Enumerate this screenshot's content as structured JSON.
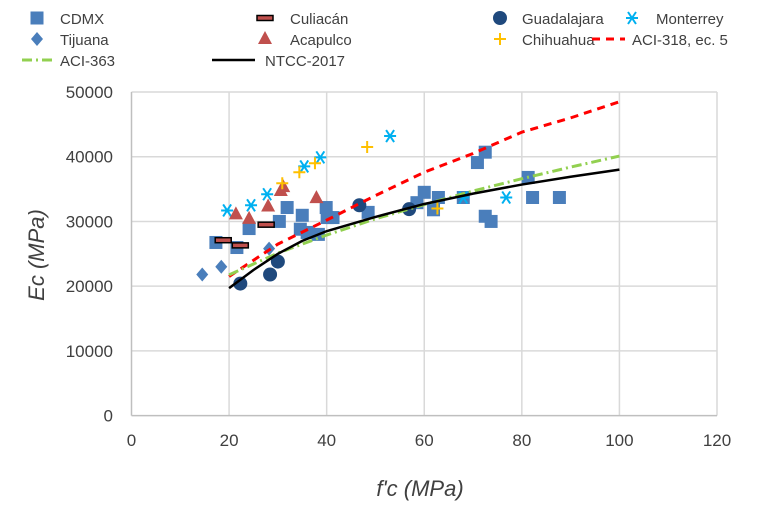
{
  "chart_data": {
    "type": "scatter",
    "xlabel": "f'c (MPa)",
    "ylabel": "Ec (MPa)",
    "xlim": [
      0,
      120
    ],
    "ylim": [
      0,
      50000
    ],
    "xticks": [
      "0",
      "20",
      "40",
      "60",
      "80",
      "100",
      "120"
    ],
    "yticks": [
      "0",
      "10000",
      "20000",
      "30000",
      "40000",
      "50000"
    ],
    "grid": true,
    "legend_position": "top",
    "series": [
      {
        "name": "CDMX",
        "marker": "square",
        "color": "#4a7ebb",
        "points": [
          [
            17.3,
            26750
          ],
          [
            21.6,
            25970
          ],
          [
            24.1,
            28900
          ],
          [
            30.3,
            30000
          ],
          [
            31.9,
            32150
          ],
          [
            35,
            30950
          ],
          [
            34.6,
            28800
          ],
          [
            36,
            28300
          ],
          [
            38.3,
            28000
          ],
          [
            39.9,
            32150
          ],
          [
            40.1,
            30600
          ],
          [
            41.3,
            30600
          ],
          [
            48.5,
            31400
          ],
          [
            60,
            34500
          ],
          [
            58.5,
            32900
          ],
          [
            62.9,
            33700
          ],
          [
            61.9,
            31800
          ],
          [
            68,
            33700
          ],
          [
            70.9,
            39100
          ],
          [
            72.5,
            40700
          ],
          [
            72.5,
            30800
          ],
          [
            73.7,
            30000
          ],
          [
            81.3,
            36800
          ],
          [
            82.2,
            33700
          ],
          [
            87.7,
            33700
          ]
        ]
      },
      {
        "name": "Culiacán",
        "marker": "dash",
        "color": "#c0504d",
        "points": [
          [
            18.8,
            27100
          ],
          [
            22.3,
            26300
          ],
          [
            27.6,
            29500
          ]
        ]
      },
      {
        "name": "Guadalajara",
        "marker": "circle",
        "color": "#1f497d",
        "points": [
          [
            22.3,
            20400
          ],
          [
            28.4,
            21800
          ],
          [
            30,
            23800
          ],
          [
            46.7,
            32500
          ],
          [
            56.9,
            31900
          ]
        ]
      },
      {
        "name": "Monterrey",
        "marker": "asterisk",
        "color": "#00b0f0",
        "points": [
          [
            19.6,
            31700
          ],
          [
            24.5,
            32500
          ],
          [
            27.8,
            34200
          ],
          [
            35.4,
            38500
          ],
          [
            38.7,
            39900
          ],
          [
            53,
            43200
          ],
          [
            68,
            33700
          ],
          [
            76.8,
            33700
          ]
        ]
      },
      {
        "name": "Tijuana",
        "marker": "diamond",
        "color": "#4a7ebb",
        "points": [
          [
            14.5,
            21800
          ],
          [
            18.4,
            23000
          ],
          [
            28.2,
            25800
          ]
        ]
      },
      {
        "name": "Acapulco",
        "marker": "triangle",
        "color": "#c0504d",
        "points": [
          [
            21.4,
            31100
          ],
          [
            24.1,
            30400
          ],
          [
            28,
            32300
          ],
          [
            30.6,
            34700
          ],
          [
            31.1,
            35300
          ],
          [
            37.9,
            33600
          ]
        ]
      },
      {
        "name": "Chihuahua",
        "marker": "plus",
        "color": "#ffc000",
        "points": [
          [
            30.9,
            35900
          ],
          [
            34.4,
            37600
          ],
          [
            37.6,
            39000
          ],
          [
            48.3,
            41500
          ],
          [
            62.7,
            32000
          ]
        ]
      },
      {
        "name": "ACI-318, ec. 5",
        "marker": "line",
        "dash": "8,6",
        "color": "#ff0000",
        "points": [
          [
            20,
            21500
          ],
          [
            30,
            26500
          ],
          [
            40,
            30200
          ],
          [
            50,
            34000
          ],
          [
            60,
            37600
          ],
          [
            70,
            40500
          ],
          [
            80,
            43800
          ],
          [
            90,
            46000
          ],
          [
            100,
            48500
          ]
        ]
      },
      {
        "name": "ACI-363",
        "marker": "line",
        "dash": "10,4,2,4",
        "color": "#92d050",
        "points": [
          [
            20,
            21750
          ],
          [
            30,
            25100
          ],
          [
            40,
            27900
          ],
          [
            50,
            30400
          ],
          [
            60,
            32600
          ],
          [
            70,
            34700
          ],
          [
            80,
            36600
          ],
          [
            90,
            38400
          ],
          [
            100,
            40100
          ]
        ]
      },
      {
        "name": "NTCC-2017",
        "marker": "line",
        "dash": "",
        "color": "#000000",
        "points": [
          [
            20,
            19700
          ],
          [
            25,
            22500
          ],
          [
            30,
            25000
          ],
          [
            35,
            27000
          ],
          [
            40,
            28500
          ],
          [
            50,
            30700
          ],
          [
            60,
            32700
          ],
          [
            70,
            34300
          ],
          [
            80,
            35700
          ],
          [
            90,
            36900
          ],
          [
            100,
            38000
          ]
        ]
      }
    ]
  }
}
